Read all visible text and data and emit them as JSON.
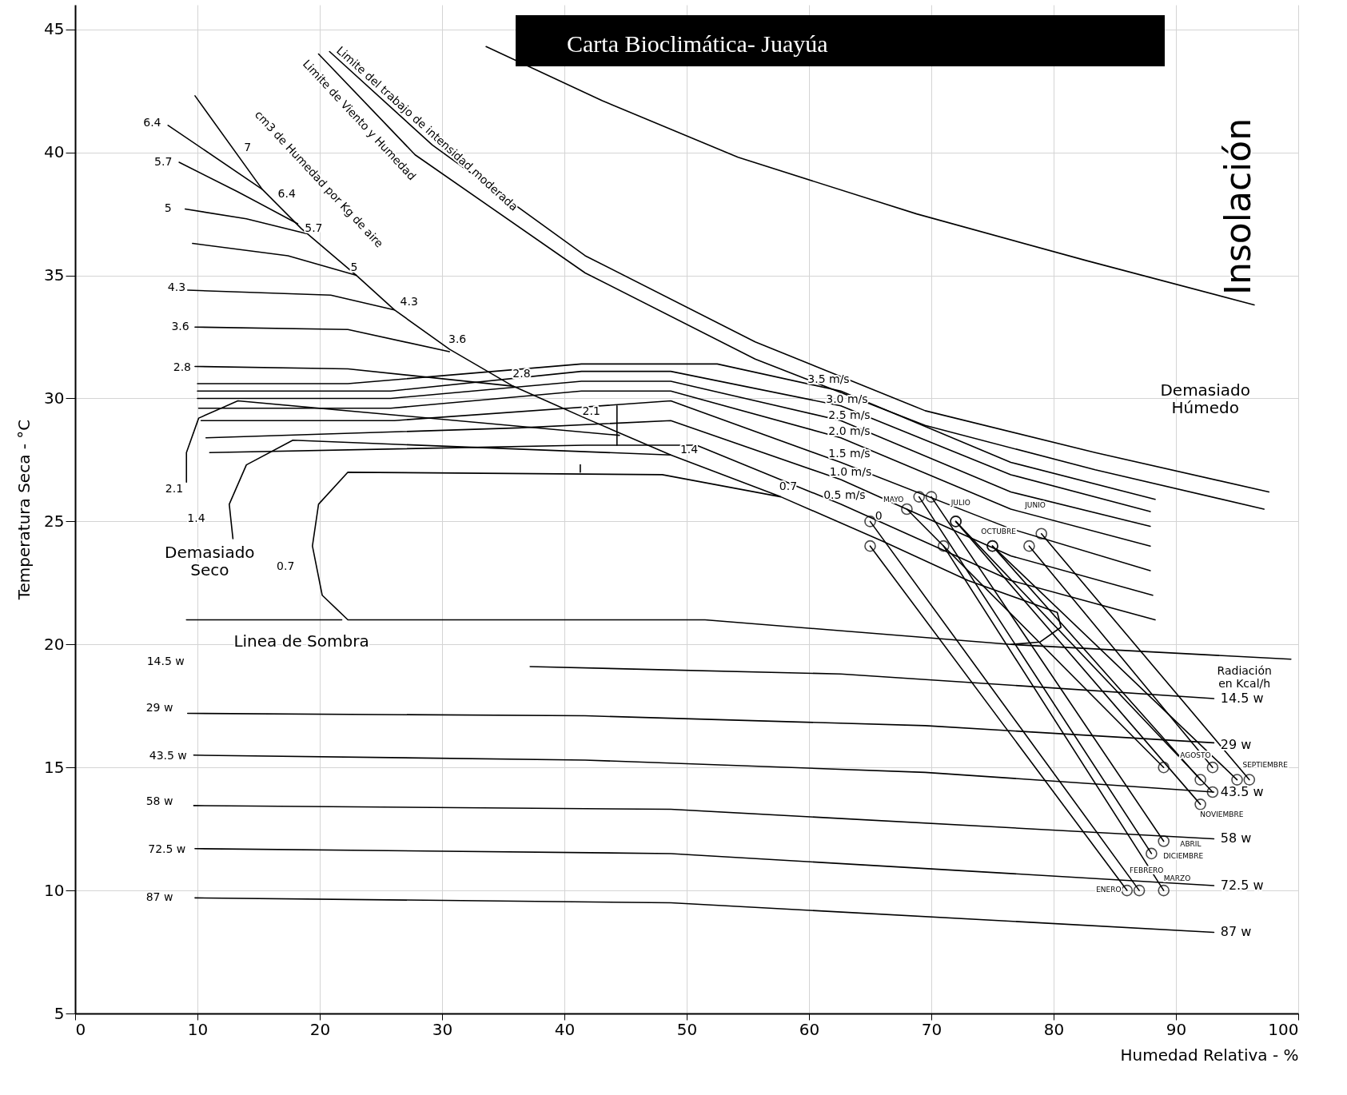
{
  "chart_data": {
    "type": "line",
    "title": "Carta Bioclimática- Juayúa",
    "xlabel": "Humedad Relativa - %",
    "ylabel": "Temperatura Seca - °C",
    "xlim": [
      0,
      100
    ],
    "ylim": [
      5,
      46
    ],
    "xticks": [
      0,
      10,
      20,
      30,
      40,
      50,
      60,
      70,
      80,
      90,
      100
    ],
    "yticks": [
      5,
      10,
      15,
      20,
      25,
      30,
      35,
      40,
      45
    ],
    "grid": true,
    "legend": false,
    "marker": "none",
    "line_style": "solid",
    "series": [
      {
        "color": "#000000",
        "x": [
          33.6,
          43.1,
          54.2,
          68.8,
          82.7,
          96.4
        ],
        "values": [
          44.3,
          42.1,
          39.8,
          37.5,
          35.6,
          33.8
        ]
      },
      {
        "color": "#000000",
        "x": [
          20.8,
          29.2,
          41.7,
          55.6,
          69.5,
          83.4,
          97.6
        ],
        "values": [
          44.1,
          40.3,
          35.8,
          32.3,
          29.5,
          27.8,
          26.2
        ]
      },
      {
        "color": "#000000",
        "x": [
          19.9,
          27.8,
          41.7,
          55.6,
          69.5,
          83.4,
          97.2
        ],
        "values": [
          44.0,
          39.9,
          35.1,
          31.6,
          28.9,
          27.1,
          25.5
        ]
      },
      {
        "color": "#000000",
        "x": [
          10.0,
          22.3,
          41.4,
          52.5,
          62.6,
          76.5,
          88.3
        ],
        "values": [
          30.6,
          30.6,
          31.4,
          31.4,
          30.3,
          27.4,
          25.9
        ]
      },
      {
        "color": "#000000",
        "x": [
          10.0,
          25.8,
          41.4,
          48.7,
          62.6,
          76.5,
          87.9
        ],
        "values": [
          30.3,
          30.3,
          31.1,
          31.1,
          29.7,
          26.9,
          25.4
        ]
      },
      {
        "color": "#000000",
        "x": [
          10.0,
          25.8,
          41.4,
          48.7,
          62.6,
          76.5,
          87.9
        ],
        "values": [
          30.0,
          30.0,
          30.7,
          30.7,
          29.1,
          26.2,
          24.8
        ]
      },
      {
        "color": "#000000",
        "x": [
          10.1,
          25.8,
          41.4,
          48.7,
          62.6,
          76.5,
          87.9
        ],
        "values": [
          29.6,
          29.6,
          30.3,
          30.3,
          28.4,
          25.5,
          24.0
        ]
      },
      {
        "color": "#000000",
        "x": [
          10.3,
          26.1,
          48.7,
          62.6,
          76.5,
          87.9
        ],
        "values": [
          29.1,
          29.1,
          29.9,
          27.4,
          24.7,
          23.0
        ]
      },
      {
        "color": "#000000",
        "x": [
          10.7,
          36.2,
          48.7,
          62.6,
          76.5,
          88.1
        ],
        "values": [
          28.4,
          28.8,
          29.1,
          26.7,
          23.6,
          22.0
        ]
      },
      {
        "color": "#000000",
        "x": [
          11.0,
          41.7,
          50.8,
          62.6,
          76.5,
          88.3
        ],
        "values": [
          27.8,
          28.1,
          28.1,
          25.7,
          22.6,
          21.0
        ]
      },
      {
        "color": "#000000",
        "x": [
          9.8,
          15.3,
          18.5,
          23.0,
          26.1,
          30.6,
          35.8,
          41.7,
          48.7,
          57.7,
          66.0,
          73.0,
          80.3,
          80.6,
          78.9,
          76.5,
          51.5,
          22.3,
          20.2,
          19.4,
          19.9,
          22.3,
          48.0,
          57.7
        ],
        "values": [
          42.3,
          38.5,
          36.9,
          35.0,
          33.6,
          32.0,
          30.5,
          29.2,
          27.7,
          26.0,
          24.2,
          22.6,
          21.3,
          20.7,
          20.1,
          20.0,
          21.0,
          21.0,
          22.0,
          24.0,
          25.7,
          27.0,
          26.9,
          26.0
        ]
      },
      {
        "color": "#000000",
        "x": [
          21.8,
          9.1
        ],
        "values": [
          21.0,
          21.0
        ]
      },
      {
        "color": "#000000",
        "x": [
          48.7,
          17.8,
          14.0,
          12.6,
          12.9
        ],
        "values": [
          27.7,
          28.3,
          27.3,
          25.7,
          24.3
        ]
      },
      {
        "color": "#000000",
        "x": [
          44.5,
          13.3,
          10.1,
          9.1,
          9.1
        ],
        "values": [
          28.5,
          29.9,
          29.2,
          27.8,
          26.6
        ]
      },
      {
        "color": "#000000",
        "x": [
          9.8,
          22.3,
          35.8
        ],
        "values": [
          31.3,
          31.2,
          30.5
        ]
      },
      {
        "color": "#000000",
        "x": [
          9.8,
          22.3,
          30.6
        ],
        "values": [
          32.9,
          32.8,
          31.9
        ]
      },
      {
        "color": "#000000",
        "x": [
          9.2,
          20.9,
          26.1
        ],
        "values": [
          34.4,
          34.2,
          33.6
        ]
      },
      {
        "color": "#000000",
        "x": [
          9.6,
          17.4,
          23.0
        ],
        "values": [
          36.3,
          35.8,
          35.0
        ]
      },
      {
        "color": "#000000",
        "x": [
          9.0,
          14.0,
          18.9
        ],
        "values": [
          37.7,
          37.3,
          36.7
        ]
      },
      {
        "color": "#000000",
        "x": [
          8.5,
          13.3,
          18.2
        ],
        "values": [
          39.6,
          38.4,
          37.1
        ]
      },
      {
        "color": "#000000",
        "x": [
          7.6,
          15.3
        ],
        "values": [
          41.1,
          38.5
        ]
      },
      {
        "color": "#000000",
        "x": [
          44.3,
          44.3
        ],
        "values": [
          29.7,
          28.1
        ]
      },
      {
        "color": "#000000",
        "x": [
          41.3,
          41.3
        ],
        "values": [
          27.3,
          27.0
        ]
      },
      {
        "color": "#000000",
        "x": [
          76.5,
          99.4
        ],
        "values": [
          20.0,
          19.4
        ]
      },
      {
        "color": "#000000",
        "x": [
          37.2,
          62.6,
          93.1
        ],
        "values": [
          19.1,
          18.8,
          17.8
        ]
      },
      {
        "color": "#000000",
        "x": [
          9.2,
          41.7,
          69.5,
          93.1
        ],
        "values": [
          17.2,
          17.1,
          16.7,
          16.0
        ]
      },
      {
        "color": "#000000",
        "x": [
          9.7,
          41.7,
          69.5,
          93.1
        ],
        "values": [
          15.5,
          15.3,
          14.8,
          14.0
        ]
      },
      {
        "color": "#000000",
        "x": [
          9.7,
          48.7,
          93.1
        ],
        "values": [
          13.45,
          13.3,
          12.1
        ]
      },
      {
        "color": "#000000",
        "x": [
          9.8,
          48.7,
          93.1
        ],
        "values": [
          11.7,
          11.5,
          10.2
        ]
      },
      {
        "color": "#000000",
        "x": [
          9.8,
          48.7,
          93.1
        ],
        "values": [
          9.7,
          9.5,
          8.3
        ]
      },
      {
        "color": "#000000",
        "marker": "circle",
        "x": [
          65,
          86
        ],
        "values": [
          24,
          10
        ]
      },
      {
        "color": "#000000",
        "marker": "circle",
        "x": [
          65,
          87
        ],
        "values": [
          25,
          10
        ]
      },
      {
        "color": "#000000",
        "marker": "circle",
        "x": [
          71,
          89
        ],
        "values": [
          24,
          10
        ]
      },
      {
        "color": "#000000",
        "marker": "circle",
        "x": [
          70,
          89
        ],
        "values": [
          26,
          12
        ]
      },
      {
        "color": "#000000",
        "marker": "circle",
        "x": [
          68,
          89
        ],
        "values": [
          25.5,
          15
        ]
      },
      {
        "color": "#000000",
        "marker": "circle",
        "x": [
          79,
          96
        ],
        "values": [
          24.5,
          14.5
        ]
      },
      {
        "color": "#000000",
        "marker": "circle",
        "x": [
          72,
          93
        ],
        "values": [
          25,
          14
        ]
      },
      {
        "color": "#000000",
        "marker": "circle",
        "x": [
          78,
          93
        ],
        "values": [
          24,
          15
        ]
      },
      {
        "color": "#000000",
        "marker": "circle",
        "x": [
          75,
          95
        ],
        "values": [
          24,
          14.5
        ]
      },
      {
        "color": "#000000",
        "marker": "circle",
        "x": [
          75,
          92
        ],
        "values": [
          24,
          14.5
        ]
      },
      {
        "color": "#000000",
        "marker": "circle",
        "x": [
          72,
          92
        ],
        "values": [
          25,
          13.5
        ]
      },
      {
        "color": "#000000",
        "marker": "circle",
        "x": [
          69,
          88
        ],
        "values": [
          26,
          11.5
        ]
      }
    ],
    "annotations": [
      "Limite del trabajo de intensidad moderada",
      "Limite de Viento y Humedad",
      "cm3 de Humedad por Kg de aire",
      "Insolación",
      "Demasiado\nHúmedo",
      "Demasiado\nSeco",
      "Linea de Sombra",
      "Radiación\nen Kcal/h",
      "6.4",
      "5.7",
      "5",
      "4.3",
      "3.6",
      "2.8",
      "7",
      "6.4",
      "5.7",
      "5",
      "4.3",
      "3.6",
      "2.8",
      "2.1",
      "1.4",
      "0.7",
      "0",
      "2.1",
      "1.4",
      "0.7",
      "3.5 m/s",
      "3.0 m/s",
      "2.5 m/s",
      "2.0 m/s",
      "1.5 m/s",
      "1.0 m/s",
      "0.5 m/s",
      "14.5 w",
      "29 w",
      "43.5 w",
      "58 w",
      "72.5 w",
      "87 w",
      "14.5 w",
      "29 w",
      "43.5 w",
      "58 w",
      "72.5 w",
      "87 w",
      "MAYO",
      "JULIO",
      "OCTUBRE",
      "JUNIO",
      "AGOSTO",
      "SEPTIEMBRE",
      "NOVIEMBRE",
      "ABRIL",
      "DICIEMBRE",
      "ENERO",
      "FEBRERO",
      "MARZO"
    ]
  }
}
